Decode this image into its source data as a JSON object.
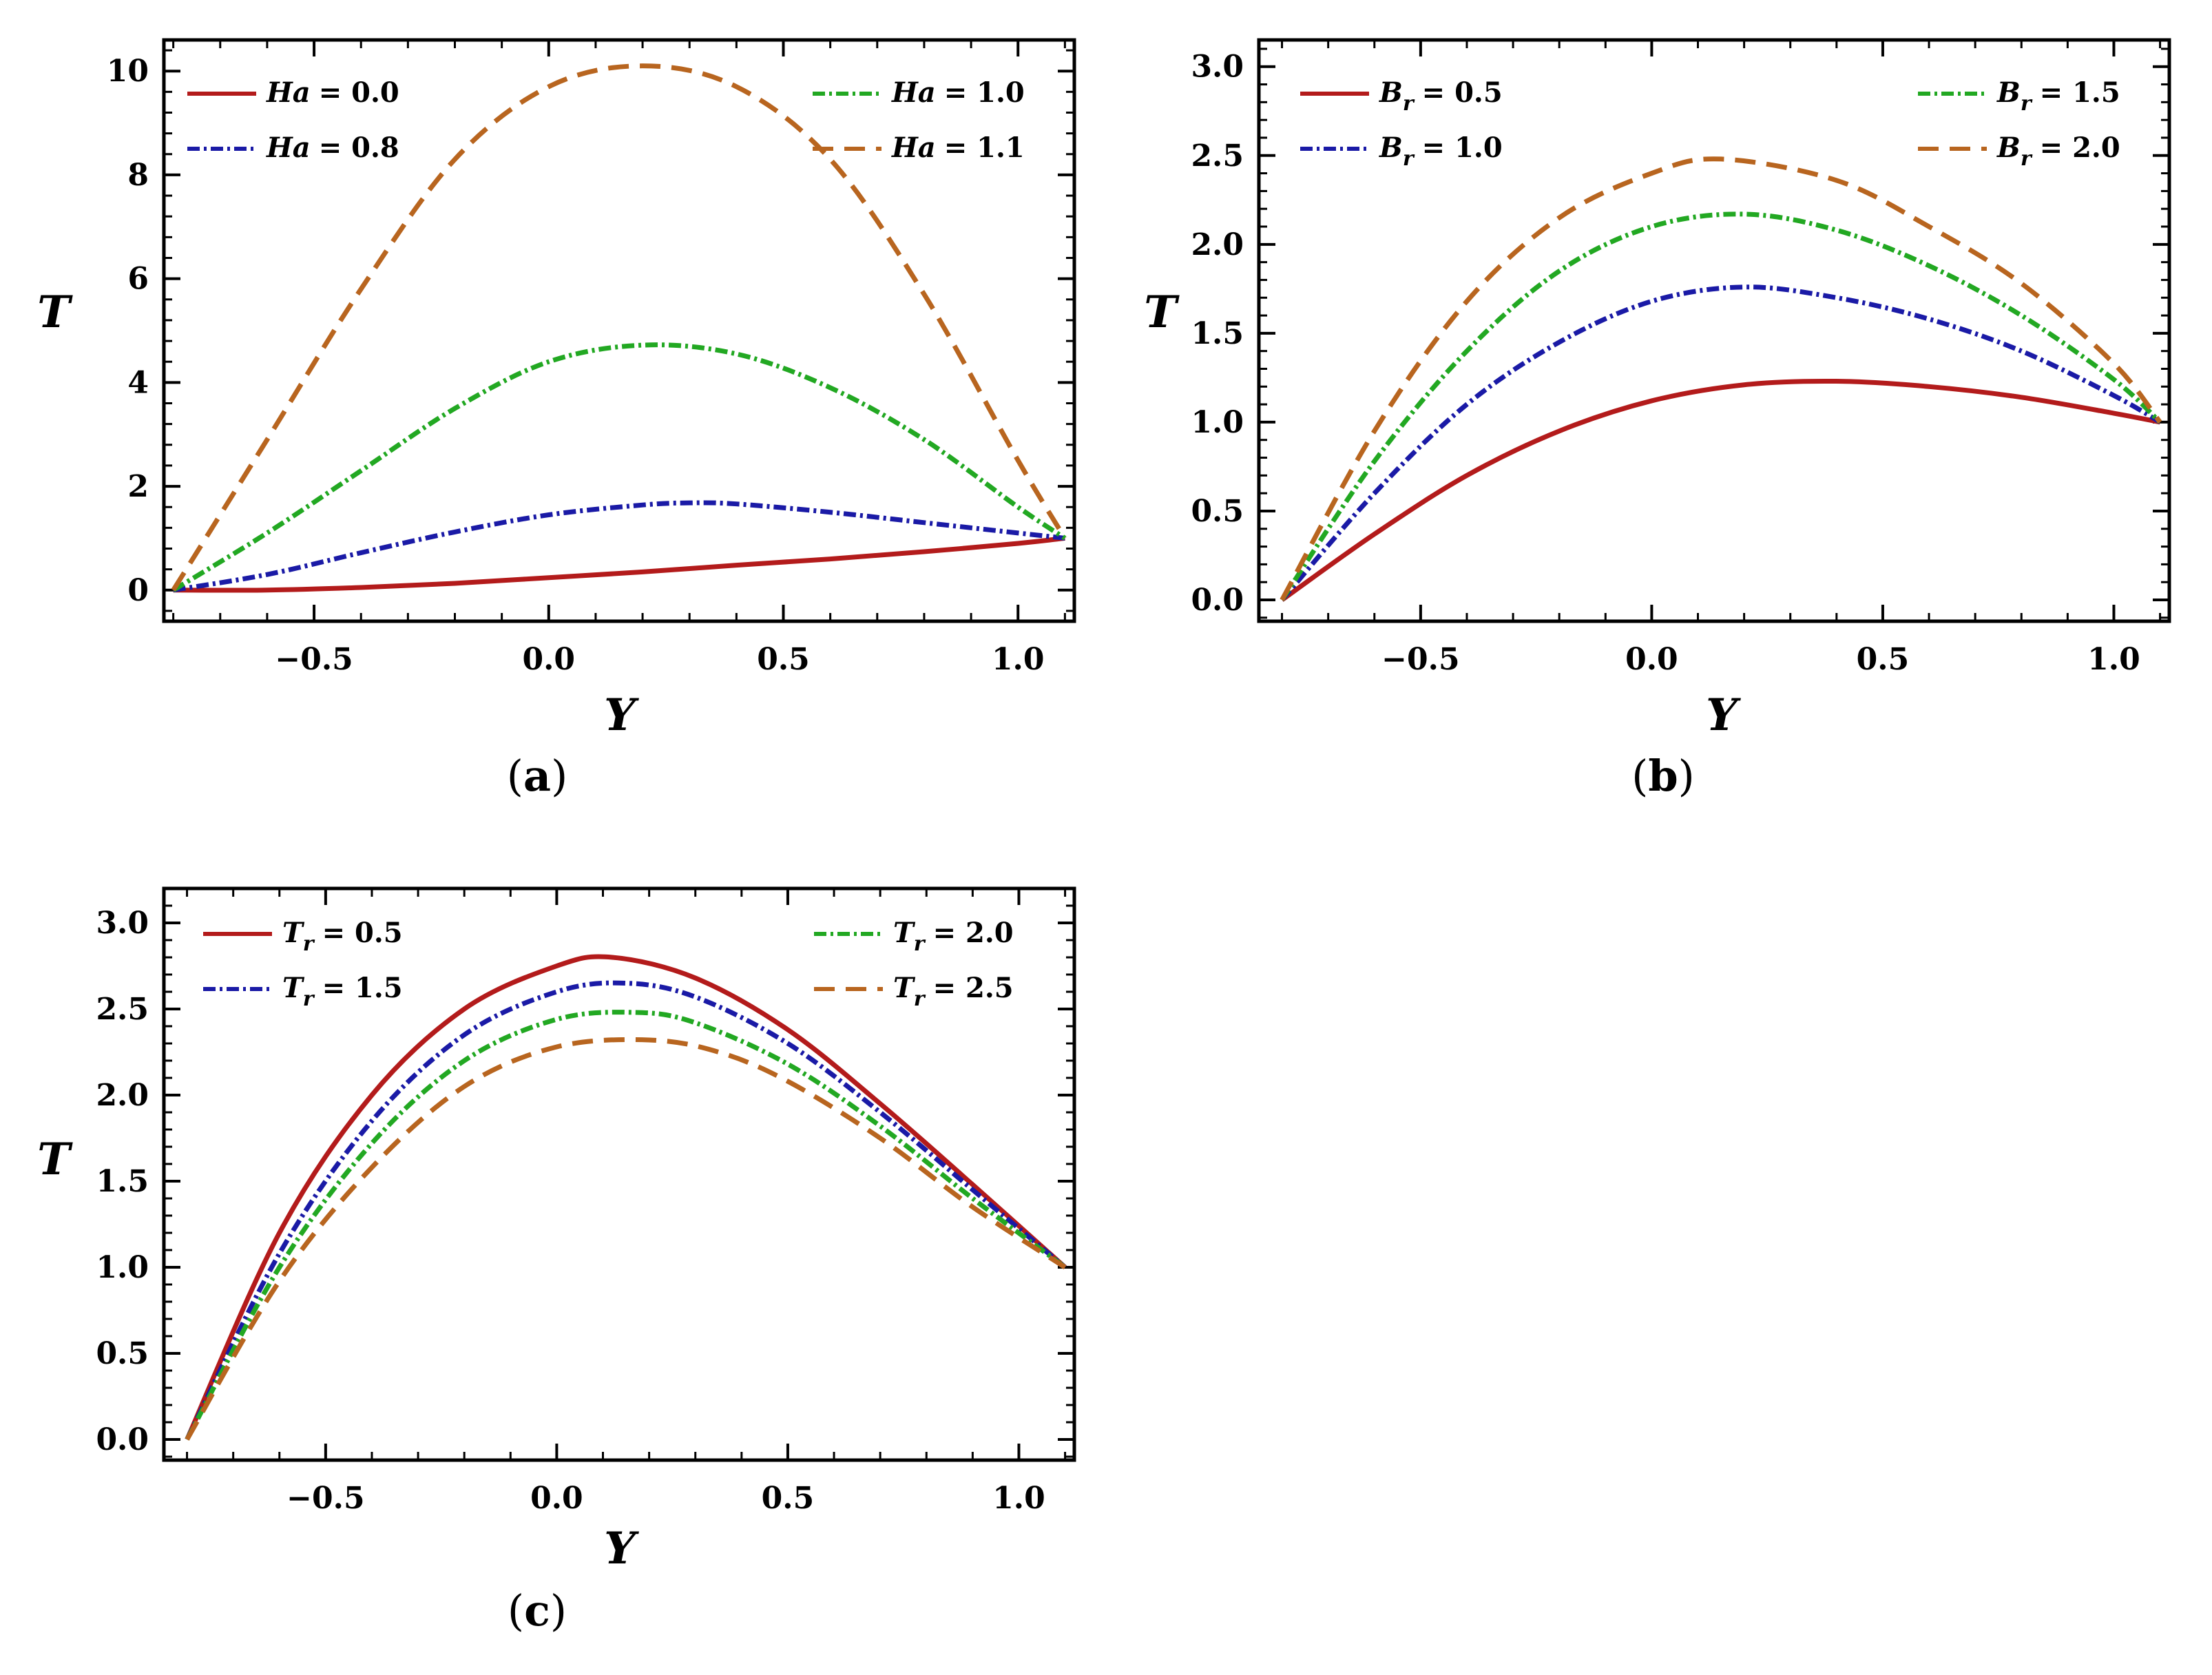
{
  "chart_data": [
    {
      "id": "a",
      "type": "line",
      "caption_open": "(",
      "caption_letter": "a",
      "caption_close": ")",
      "xlabel": "Y",
      "ylabel": "T",
      "xlim": [
        -0.82,
        1.12
      ],
      "ylim": [
        -0.6,
        10.6
      ],
      "xticks": [
        {
          "v": -0.5,
          "label": "−0.5"
        },
        {
          "v": 0.0,
          "label": "0.0"
        },
        {
          "v": 0.5,
          "label": "0.5"
        },
        {
          "v": 1.0,
          "label": "1.0"
        }
      ],
      "yticks": [
        {
          "v": 0,
          "label": "0"
        },
        {
          "v": 2,
          "label": "2"
        },
        {
          "v": 4,
          "label": "4"
        },
        {
          "v": 6,
          "label": "6"
        },
        {
          "v": 8,
          "label": "8"
        },
        {
          "v": 10,
          "label": "10"
        }
      ],
      "series": [
        {
          "name": "Ha = 0.0",
          "sym": "Ha",
          "sub": "",
          "val": "= 0.0",
          "color": "#b31b1b",
          "style": "solid",
          "x": [
            -0.8,
            -0.6,
            -0.4,
            -0.2,
            0.0,
            0.2,
            0.4,
            0.6,
            0.8,
            1.0,
            1.1
          ],
          "y": [
            0.0,
            0.0,
            0.05,
            0.13,
            0.24,
            0.35,
            0.48,
            0.6,
            0.74,
            0.9,
            1.0
          ]
        },
        {
          "name": "Ha = 0.8",
          "sym": "Ha",
          "sub": "",
          "val": "= 0.8",
          "color": "#1a1aa6",
          "style": "dashdot",
          "x": [
            -0.8,
            -0.6,
            -0.4,
            -0.2,
            0.0,
            0.2,
            0.3,
            0.4,
            0.6,
            0.8,
            1.0,
            1.1
          ],
          "y": [
            0.0,
            0.3,
            0.72,
            1.12,
            1.45,
            1.64,
            1.68,
            1.66,
            1.5,
            1.3,
            1.1,
            1.0
          ]
        },
        {
          "name": "Ha = 1.0",
          "sym": "Ha",
          "sub": "",
          "val": "= 1.0",
          "color": "#22a822",
          "style": "dashdot",
          "x": [
            -0.8,
            -0.6,
            -0.4,
            -0.2,
            0.0,
            0.2,
            0.4,
            0.6,
            0.8,
            1.0,
            1.1
          ],
          "y": [
            0.0,
            1.1,
            2.3,
            3.5,
            4.4,
            4.72,
            4.55,
            3.9,
            2.9,
            1.6,
            1.0
          ]
        },
        {
          "name": "Ha = 1.1",
          "sym": "Ha",
          "sub": "",
          "val": "= 1.1",
          "color": "#b8651f",
          "style": "dashed",
          "x": [
            -0.8,
            -0.6,
            -0.4,
            -0.2,
            0.0,
            0.2,
            0.4,
            0.6,
            0.8,
            1.0,
            1.1
          ],
          "y": [
            0.0,
            2.9,
            5.8,
            8.3,
            9.7,
            10.1,
            9.7,
            8.3,
            5.7,
            2.5,
            1.0
          ]
        }
      ]
    },
    {
      "id": "b",
      "type": "line",
      "caption_open": "(",
      "caption_letter": "b",
      "caption_close": ")",
      "xlabel": "Y",
      "ylabel": "T",
      "xlim": [
        -0.85,
        1.12
      ],
      "ylim": [
        -0.12,
        3.15
      ],
      "xticks": [
        {
          "v": -0.5,
          "label": "−0.5"
        },
        {
          "v": 0.0,
          "label": "0.0"
        },
        {
          "v": 0.5,
          "label": "0.5"
        },
        {
          "v": 1.0,
          "label": "1.0"
        }
      ],
      "yticks": [
        {
          "v": 0,
          "label": "0.0"
        },
        {
          "v": 0.5,
          "label": "0.5"
        },
        {
          "v": 1.0,
          "label": "1.0"
        },
        {
          "v": 1.5,
          "label": "1.5"
        },
        {
          "v": 2.0,
          "label": "2.0"
        },
        {
          "v": 2.5,
          "label": "2.5"
        },
        {
          "v": 3.0,
          "label": "3.0"
        }
      ],
      "series": [
        {
          "name": "Br = 0.5",
          "sym": "B",
          "sub": "r",
          "val": "= 0.5",
          "color": "#b31b1b",
          "style": "solid",
          "x": [
            -0.8,
            -0.6,
            -0.4,
            -0.2,
            0.0,
            0.2,
            0.4,
            0.6,
            0.8,
            1.0,
            1.1
          ],
          "y": [
            0.0,
            0.37,
            0.7,
            0.95,
            1.12,
            1.21,
            1.23,
            1.2,
            1.14,
            1.05,
            1.0
          ]
        },
        {
          "name": "Br = 1.0",
          "sym": "B",
          "sub": "r",
          "val": "= 1.0",
          "color": "#1a1aa6",
          "style": "dashdot",
          "x": [
            -0.8,
            -0.6,
            -0.4,
            -0.2,
            0.0,
            0.2,
            0.4,
            0.6,
            0.8,
            1.0,
            1.1
          ],
          "y": [
            0.0,
            0.6,
            1.1,
            1.45,
            1.68,
            1.76,
            1.7,
            1.58,
            1.4,
            1.15,
            1.0
          ]
        },
        {
          "name": "Br = 1.5",
          "sym": "B",
          "sub": "r",
          "val": "= 1.5",
          "color": "#22a822",
          "style": "dashdot",
          "x": [
            -0.8,
            -0.6,
            -0.4,
            -0.2,
            0.0,
            0.2,
            0.4,
            0.6,
            0.8,
            1.0,
            1.1
          ],
          "y": [
            0.0,
            0.78,
            1.4,
            1.85,
            2.1,
            2.17,
            2.08,
            1.88,
            1.6,
            1.24,
            1.0
          ]
        },
        {
          "name": "Br = 2.0",
          "sym": "B",
          "sub": "r",
          "val": "= 2.0",
          "color": "#b8651f",
          "style": "dashed",
          "x": [
            -0.8,
            -0.6,
            -0.4,
            -0.2,
            0.0,
            0.15,
            0.4,
            0.6,
            0.8,
            1.0,
            1.1
          ],
          "y": [
            0.0,
            0.95,
            1.68,
            2.15,
            2.4,
            2.48,
            2.36,
            2.1,
            1.78,
            1.33,
            1.0
          ]
        }
      ]
    },
    {
      "id": "c",
      "type": "line",
      "caption_open": "(",
      "caption_letter": "c",
      "caption_close": ")",
      "xlabel": "Y",
      "ylabel": "T",
      "xlim": [
        -0.85,
        1.12
      ],
      "ylim": [
        -0.12,
        3.2
      ],
      "xticks": [
        {
          "v": -0.5,
          "label": "−0.5"
        },
        {
          "v": 0.0,
          "label": "0.0"
        },
        {
          "v": 0.5,
          "label": "0.5"
        },
        {
          "v": 1.0,
          "label": "1.0"
        }
      ],
      "yticks": [
        {
          "v": 0,
          "label": "0.0"
        },
        {
          "v": 0.5,
          "label": "0.5"
        },
        {
          "v": 1.0,
          "label": "1.0"
        },
        {
          "v": 1.5,
          "label": "1.5"
        },
        {
          "v": 2.0,
          "label": "2.0"
        },
        {
          "v": 2.5,
          "label": "2.5"
        },
        {
          "v": 3.0,
          "label": "3.0"
        }
      ],
      "series": [
        {
          "name": "Tr = 0.5",
          "sym": "T",
          "sub": "r",
          "val": "= 0.5",
          "color": "#b31b1b",
          "style": "solid",
          "x": [
            -0.8,
            -0.6,
            -0.4,
            -0.2,
            0.0,
            0.12,
            0.3,
            0.5,
            0.7,
            0.9,
            1.1
          ],
          "y": [
            0.0,
            1.2,
            2.0,
            2.5,
            2.75,
            2.8,
            2.68,
            2.38,
            1.95,
            1.48,
            1.0
          ]
        },
        {
          "name": "Tr = 1.5",
          "sym": "T",
          "sub": "r",
          "val": "= 1.5",
          "color": "#1a1aa6",
          "style": "dashdot",
          "x": [
            -0.8,
            -0.6,
            -0.4,
            -0.2,
            0.0,
            0.15,
            0.3,
            0.5,
            0.7,
            0.9,
            1.1
          ],
          "y": [
            0.0,
            1.08,
            1.85,
            2.35,
            2.6,
            2.65,
            2.57,
            2.3,
            1.9,
            1.45,
            1.0
          ]
        },
        {
          "name": "Tr = 2.0",
          "sym": "T",
          "sub": "r",
          "val": "= 2.0",
          "color": "#22a822",
          "style": "dashdot",
          "x": [
            -0.8,
            -0.6,
            -0.4,
            -0.2,
            0.0,
            0.17,
            0.3,
            0.5,
            0.7,
            0.9,
            1.1
          ],
          "y": [
            0.0,
            1.0,
            1.72,
            2.2,
            2.44,
            2.48,
            2.42,
            2.18,
            1.82,
            1.4,
            1.0
          ]
        },
        {
          "name": "Tr = 2.5",
          "sym": "T",
          "sub": "r",
          "val": "= 2.5",
          "color": "#b8651f",
          "style": "dashed",
          "x": [
            -0.8,
            -0.6,
            -0.4,
            -0.2,
            0.0,
            0.2,
            0.35,
            0.5,
            0.7,
            0.9,
            1.1
          ],
          "y": [
            0.0,
            0.92,
            1.58,
            2.05,
            2.28,
            2.32,
            2.25,
            2.08,
            1.75,
            1.35,
            1.0
          ]
        }
      ]
    }
  ]
}
